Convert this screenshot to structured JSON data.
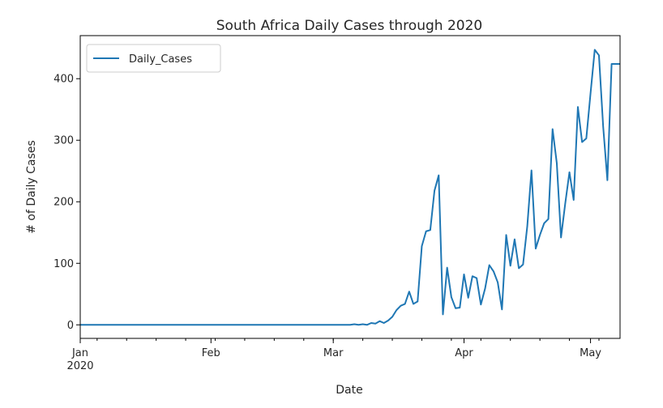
{
  "chart_data": {
    "type": "line",
    "title": "South Africa Daily Cases through 2020",
    "xlabel": "Date",
    "ylabel": "# of Daily Cases",
    "x_tick_labels": [
      "Jan\n2020",
      "Feb",
      "Mar",
      "Apr",
      "May"
    ],
    "x_tick_dates": [
      "2020-01-01",
      "2020-02-01",
      "2020-03-01",
      "2020-04-01",
      "2020-05-01"
    ],
    "xlim": [
      "2020-01-01",
      "2020-05-08"
    ],
    "y_ticks": [
      0,
      100,
      200,
      300,
      400
    ],
    "ylim": [
      -22,
      470
    ],
    "grid": false,
    "legend_position": "top-left",
    "series": [
      {
        "name": "Daily_Cases",
        "color": "#1f77b4",
        "x": [
          "2020-01-01",
          "2020-03-05",
          "2020-03-06",
          "2020-03-07",
          "2020-03-08",
          "2020-03-09",
          "2020-03-10",
          "2020-03-11",
          "2020-03-12",
          "2020-03-13",
          "2020-03-14",
          "2020-03-15",
          "2020-03-16",
          "2020-03-17",
          "2020-03-18",
          "2020-03-19",
          "2020-03-20",
          "2020-03-21",
          "2020-03-22",
          "2020-03-23",
          "2020-03-24",
          "2020-03-25",
          "2020-03-26",
          "2020-03-27",
          "2020-03-28",
          "2020-03-29",
          "2020-03-30",
          "2020-03-31",
          "2020-04-01",
          "2020-04-02",
          "2020-04-03",
          "2020-04-04",
          "2020-04-05",
          "2020-04-06",
          "2020-04-07",
          "2020-04-08",
          "2020-04-09",
          "2020-04-10",
          "2020-04-11",
          "2020-04-12",
          "2020-04-13",
          "2020-04-14",
          "2020-04-15",
          "2020-04-16",
          "2020-04-17",
          "2020-04-18",
          "2020-04-19",
          "2020-04-20",
          "2020-04-21",
          "2020-04-22",
          "2020-04-23",
          "2020-04-24",
          "2020-04-25",
          "2020-04-26",
          "2020-04-27",
          "2020-04-28",
          "2020-04-29",
          "2020-04-30",
          "2020-05-01",
          "2020-05-02",
          "2020-05-03",
          "2020-05-04",
          "2020-05-05",
          "2020-05-06",
          "2020-05-07",
          "2020-05-08"
        ],
        "y": [
          0,
          0,
          1,
          0,
          1,
          0,
          3,
          2,
          6,
          3,
          7,
          13,
          24,
          31,
          34,
          54,
          34,
          38,
          128,
          152,
          154,
          218,
          243,
          17,
          93,
          45,
          27,
          28,
          82,
          44,
          79,
          76,
          33,
          59,
          97,
          87,
          69,
          25,
          146,
          96,
          139,
          92,
          98,
          160,
          251,
          124,
          146,
          165,
          172,
          318,
          263,
          142,
          197,
          248,
          203,
          354,
          297,
          303,
          376,
          447,
          438,
          322,
          235,
          424,
          424,
          424
        ]
      }
    ]
  }
}
